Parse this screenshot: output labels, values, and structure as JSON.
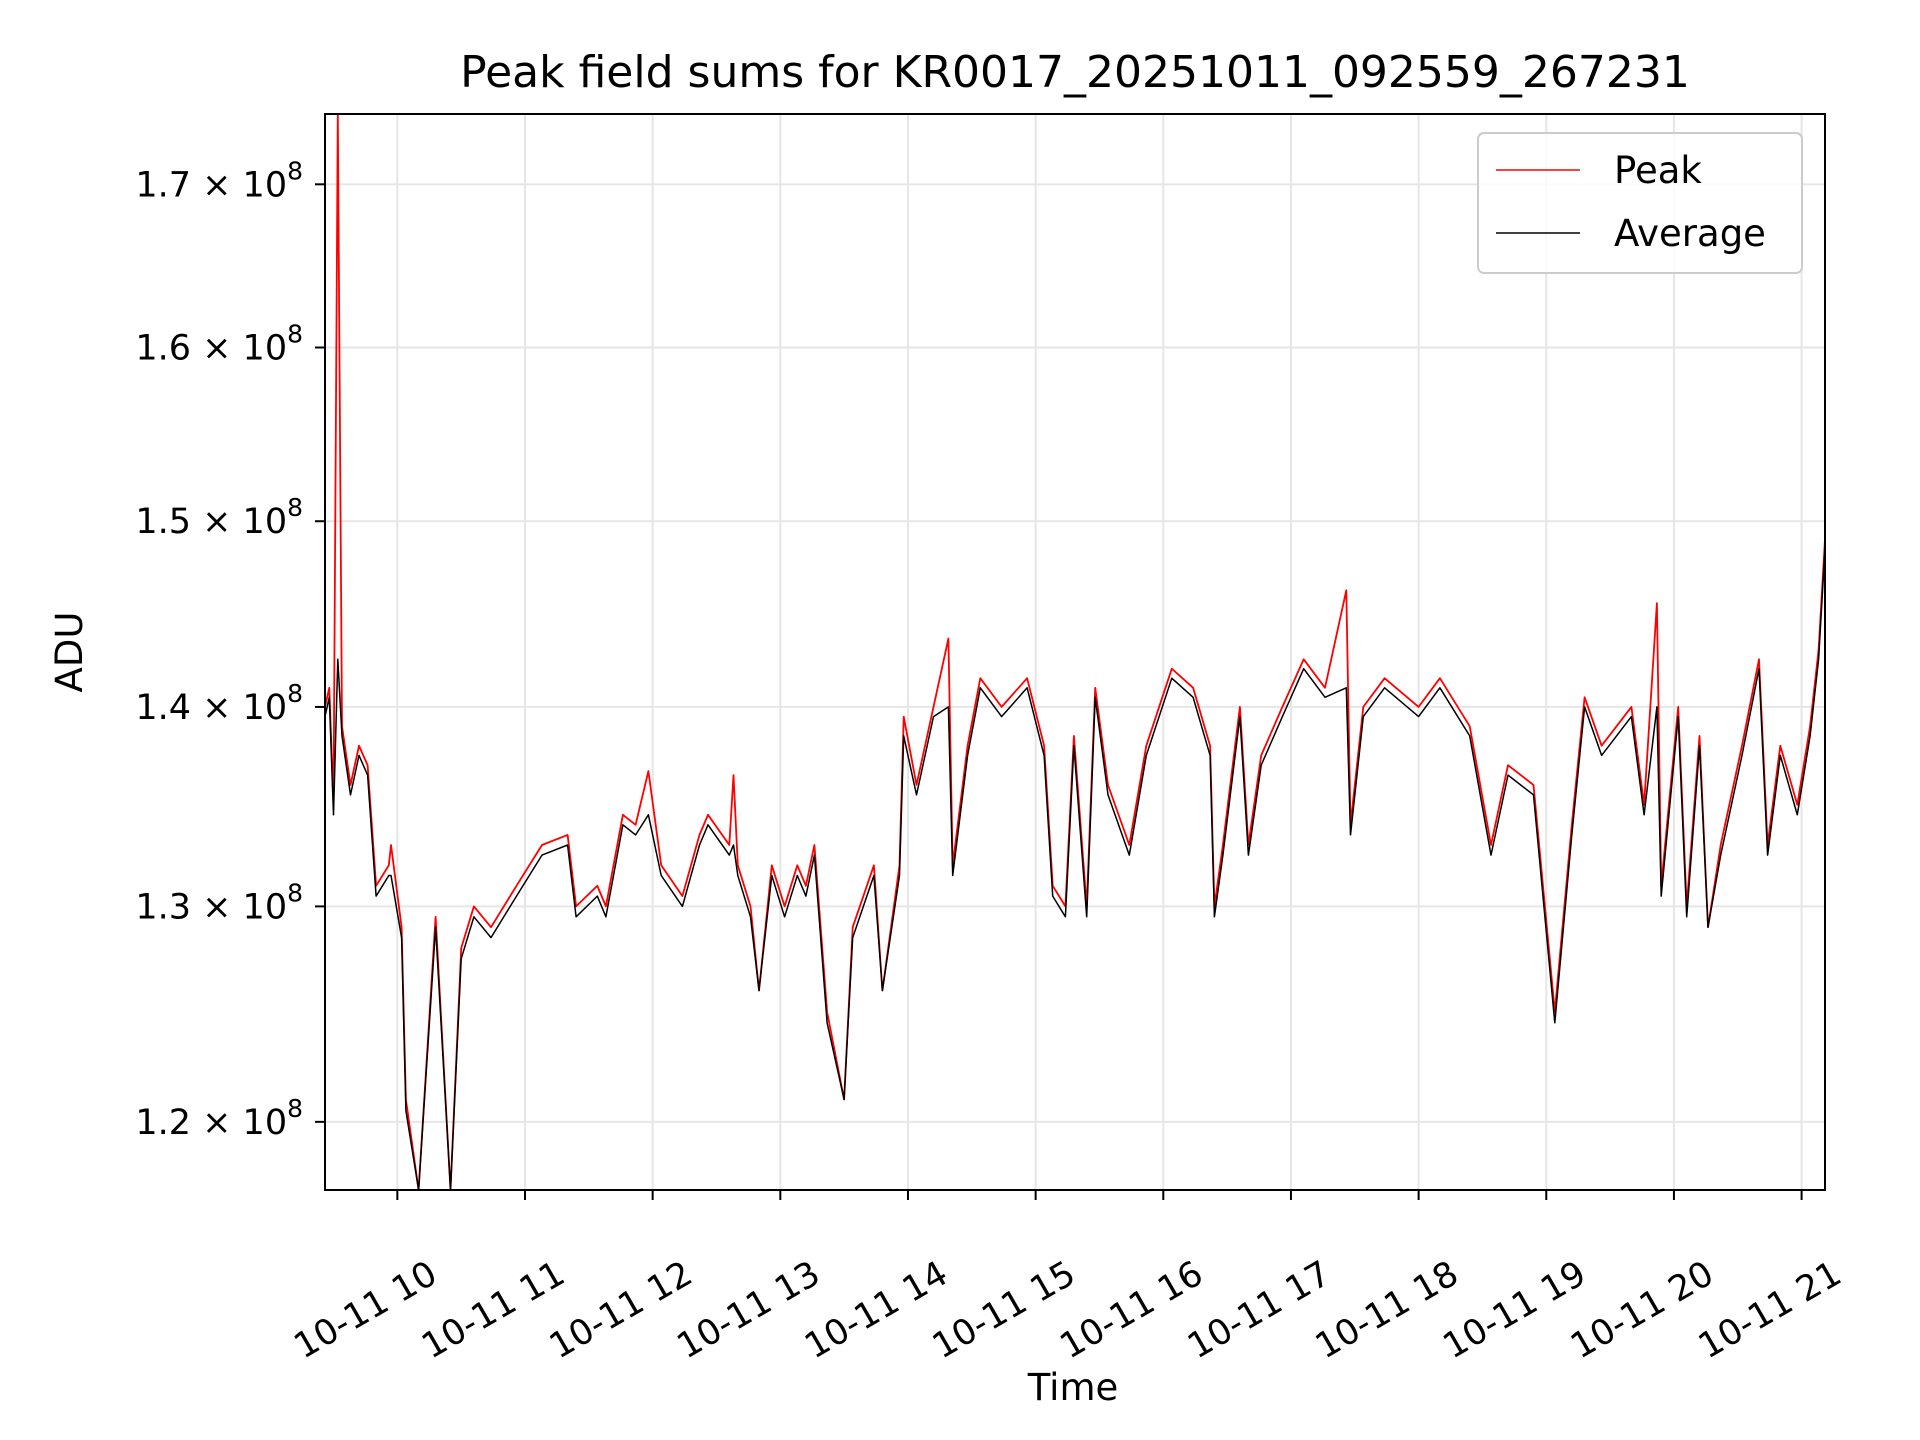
{
  "chart_data": {
    "type": "line",
    "title": "Peak field sums for KR0017_20251011_092559_267231",
    "xlabel": "Time",
    "ylabel": "ADU",
    "yscale": "log",
    "xlim": [
      "2025-10-11 09:26",
      "2025-10-11 21:11"
    ],
    "ylim": [
      117000000.0,
      174500000.0
    ],
    "grid": true,
    "legend_position": "upper right",
    "x_tick_labels": [
      "10-11 10",
      "10-11 11",
      "10-11 12",
      "10-11 13",
      "10-11 14",
      "10-11 15",
      "10-11 16",
      "10-11 17",
      "10-11 18",
      "10-11 19",
      "10-11 20",
      "10-11 21"
    ],
    "x_tick_values": [
      "2025-10-11 10:00",
      "2025-10-11 11:00",
      "2025-10-11 12:00",
      "2025-10-11 13:00",
      "2025-10-11 14:00",
      "2025-10-11 15:00",
      "2025-10-11 16:00",
      "2025-10-11 17:00",
      "2025-10-11 18:00",
      "2025-10-11 19:00",
      "2025-10-11 20:00",
      "2025-10-11 21:00"
    ],
    "y_ticks": [
      {
        "value": 120000000.0,
        "mantissa": "1.2",
        "exp": "8"
      },
      {
        "value": 130000000.0,
        "mantissa": "1.3",
        "exp": "8"
      },
      {
        "value": 140000000.0,
        "mantissa": "1.4",
        "exp": "8"
      },
      {
        "value": 150000000.0,
        "mantissa": "1.5",
        "exp": "8"
      },
      {
        "value": 160000000.0,
        "mantissa": "1.6",
        "exp": "8"
      },
      {
        "value": 170000000.0,
        "mantissa": "1.7",
        "exp": "8"
      }
    ],
    "series": [
      {
        "name": "Peak",
        "color": "#ff0000",
        "points": [
          [
            "2025-10-11 09:26",
            140000000.0
          ],
          [
            "2025-10-11 09:28",
            141000000.0
          ],
          [
            "2025-10-11 09:30",
            135000000.0
          ],
          [
            "2025-10-11 09:32",
            174500000.0
          ],
          [
            "2025-10-11 09:34",
            139000000.0
          ],
          [
            "2025-10-11 09:38",
            136000000.0
          ],
          [
            "2025-10-11 09:42",
            138000000.0
          ],
          [
            "2025-10-11 09:46",
            137000000.0
          ],
          [
            "2025-10-11 09:50",
            131000000.0
          ],
          [
            "2025-10-11 09:56",
            132000000.0
          ],
          [
            "2025-10-11 09:57",
            133000000.0
          ],
          [
            "2025-10-11 10:02",
            129000000.0
          ],
          [
            "2025-10-11 10:04",
            121000000.0
          ],
          [
            "2025-10-11 10:10",
            117000000.0
          ],
          [
            "2025-10-11 10:18",
            129500000.0
          ],
          [
            "2025-10-11 10:25",
            117000000.0
          ],
          [
            "2025-10-11 10:30",
            128000000.0
          ],
          [
            "2025-10-11 10:36",
            130000000.0
          ],
          [
            "2025-10-11 10:44",
            129000000.0
          ],
          [
            "2025-10-11 10:56",
            131000000.0
          ],
          [
            "2025-10-11 11:08",
            133000000.0
          ],
          [
            "2025-10-11 11:20",
            133500000.0
          ],
          [
            "2025-10-11 11:24",
            130000000.0
          ],
          [
            "2025-10-11 11:34",
            131000000.0
          ],
          [
            "2025-10-11 11:38",
            130000000.0
          ],
          [
            "2025-10-11 11:46",
            134500000.0
          ],
          [
            "2025-10-11 11:52",
            134000000.0
          ],
          [
            "2025-10-11 11:58",
            136700000.0
          ],
          [
            "2025-10-11 12:04",
            132000000.0
          ],
          [
            "2025-10-11 12:14",
            130500000.0
          ],
          [
            "2025-10-11 12:22",
            133500000.0
          ],
          [
            "2025-10-11 12:26",
            134500000.0
          ],
          [
            "2025-10-11 12:36",
            133000000.0
          ],
          [
            "2025-10-11 12:38",
            136500000.0
          ],
          [
            "2025-10-11 12:40",
            132000000.0
          ],
          [
            "2025-10-11 12:46",
            130000000.0
          ],
          [
            "2025-10-11 12:50",
            126000000.0
          ],
          [
            "2025-10-11 12:56",
            132000000.0
          ],
          [
            "2025-10-11 13:02",
            130000000.0
          ],
          [
            "2025-10-11 13:08",
            132000000.0
          ],
          [
            "2025-10-11 13:12",
            131000000.0
          ],
          [
            "2025-10-11 13:16",
            133000000.0
          ],
          [
            "2025-10-11 13:22",
            125000000.0
          ],
          [
            "2025-10-11 13:30",
            121000000.0
          ],
          [
            "2025-10-11 13:34",
            129000000.0
          ],
          [
            "2025-10-11 13:44",
            132000000.0
          ],
          [
            "2025-10-11 13:48",
            126000000.0
          ],
          [
            "2025-10-11 13:56",
            132000000.0
          ],
          [
            "2025-10-11 13:58",
            139500000.0
          ],
          [
            "2025-10-11 14:04",
            136000000.0
          ],
          [
            "2025-10-11 14:12",
            140000000.0
          ],
          [
            "2025-10-11 14:19",
            143600000.0
          ],
          [
            "2025-10-11 14:21",
            132000000.0
          ],
          [
            "2025-10-11 14:28",
            138000000.0
          ],
          [
            "2025-10-11 14:34",
            141500000.0
          ],
          [
            "2025-10-11 14:44",
            140000000.0
          ],
          [
            "2025-10-11 14:56",
            141500000.0
          ],
          [
            "2025-10-11 15:04",
            138000000.0
          ],
          [
            "2025-10-11 15:08",
            131000000.0
          ],
          [
            "2025-10-11 15:14",
            130000000.0
          ],
          [
            "2025-10-11 15:18",
            138500000.0
          ],
          [
            "2025-10-11 15:24",
            130000000.0
          ],
          [
            "2025-10-11 15:28",
            141000000.0
          ],
          [
            "2025-10-11 15:34",
            136000000.0
          ],
          [
            "2025-10-11 15:44",
            133000000.0
          ],
          [
            "2025-10-11 15:52",
            138000000.0
          ],
          [
            "2025-10-11 16:04",
            142000000.0
          ],
          [
            "2025-10-11 16:14",
            141000000.0
          ],
          [
            "2025-10-11 16:22",
            138000000.0
          ],
          [
            "2025-10-11 16:24",
            130000000.0
          ],
          [
            "2025-10-11 16:28",
            133000000.0
          ],
          [
            "2025-10-11 16:36",
            140000000.0
          ],
          [
            "2025-10-11 16:40",
            133000000.0
          ],
          [
            "2025-10-11 16:46",
            137500000.0
          ],
          [
            "2025-10-11 16:56",
            140000000.0
          ],
          [
            "2025-10-11 17:06",
            142500000.0
          ],
          [
            "2025-10-11 17:16",
            141000000.0
          ],
          [
            "2025-10-11 17:26",
            146200000.0
          ],
          [
            "2025-10-11 17:28",
            134000000.0
          ],
          [
            "2025-10-11 17:34",
            140000000.0
          ],
          [
            "2025-10-11 17:44",
            141500000.0
          ],
          [
            "2025-10-11 18:00",
            140000000.0
          ],
          [
            "2025-10-11 18:10",
            141500000.0
          ],
          [
            "2025-10-11 18:24",
            139000000.0
          ],
          [
            "2025-10-11 18:34",
            133000000.0
          ],
          [
            "2025-10-11 18:42",
            137000000.0
          ],
          [
            "2025-10-11 18:54",
            136000000.0
          ],
          [
            "2025-10-11 19:04",
            125000000.0
          ],
          [
            "2025-10-11 19:12",
            134000000.0
          ],
          [
            "2025-10-11 19:18",
            140500000.0
          ],
          [
            "2025-10-11 19:26",
            138000000.0
          ],
          [
            "2025-10-11 19:40",
            140000000.0
          ],
          [
            "2025-10-11 19:46",
            135000000.0
          ],
          [
            "2025-10-11 19:52",
            145500000.0
          ],
          [
            "2025-10-11 19:54",
            131000000.0
          ],
          [
            "2025-10-11 20:02",
            140000000.0
          ],
          [
            "2025-10-11 20:06",
            130000000.0
          ],
          [
            "2025-10-11 20:12",
            138500000.0
          ],
          [
            "2025-10-11 20:16",
            129000000.0
          ],
          [
            "2025-10-11 20:22",
            133000000.0
          ],
          [
            "2025-10-11 20:32",
            138000000.0
          ],
          [
            "2025-10-11 20:40",
            142500000.0
          ],
          [
            "2025-10-11 20:44",
            133000000.0
          ],
          [
            "2025-10-11 20:50",
            138000000.0
          ],
          [
            "2025-10-11 20:58",
            135000000.0
          ],
          [
            "2025-10-11 21:04",
            139000000.0
          ],
          [
            "2025-10-11 21:08",
            143000000.0
          ],
          [
            "2025-10-11 21:11",
            149000000.0
          ]
        ]
      },
      {
        "name": "Average",
        "color": "#000000",
        "points": [
          [
            "2025-10-11 09:26",
            139500000.0
          ],
          [
            "2025-10-11 09:28",
            140500000.0
          ],
          [
            "2025-10-11 09:30",
            134500000.0
          ],
          [
            "2025-10-11 09:32",
            142500000.0
          ],
          [
            "2025-10-11 09:34",
            138500000.0
          ],
          [
            "2025-10-11 09:38",
            135500000.0
          ],
          [
            "2025-10-11 09:42",
            137500000.0
          ],
          [
            "2025-10-11 09:46",
            136500000.0
          ],
          [
            "2025-10-11 09:50",
            130500000.0
          ],
          [
            "2025-10-11 09:56",
            131500000.0
          ],
          [
            "2025-10-11 09:57",
            131500000.0
          ],
          [
            "2025-10-11 10:02",
            128500000.0
          ],
          [
            "2025-10-11 10:04",
            120500000.0
          ],
          [
            "2025-10-11 10:10",
            117000000.0
          ],
          [
            "2025-10-11 10:18",
            129000000.0
          ],
          [
            "2025-10-11 10:25",
            117000000.0
          ],
          [
            "2025-10-11 10:30",
            127500000.0
          ],
          [
            "2025-10-11 10:36",
            129500000.0
          ],
          [
            "2025-10-11 10:44",
            128500000.0
          ],
          [
            "2025-10-11 10:56",
            130500000.0
          ],
          [
            "2025-10-11 11:08",
            132500000.0
          ],
          [
            "2025-10-11 11:20",
            133000000.0
          ],
          [
            "2025-10-11 11:24",
            129500000.0
          ],
          [
            "2025-10-11 11:34",
            130500000.0
          ],
          [
            "2025-10-11 11:38",
            129500000.0
          ],
          [
            "2025-10-11 11:46",
            134000000.0
          ],
          [
            "2025-10-11 11:52",
            133500000.0
          ],
          [
            "2025-10-11 11:58",
            134500000.0
          ],
          [
            "2025-10-11 12:04",
            131500000.0
          ],
          [
            "2025-10-11 12:14",
            130000000.0
          ],
          [
            "2025-10-11 12:22",
            133000000.0
          ],
          [
            "2025-10-11 12:26",
            134000000.0
          ],
          [
            "2025-10-11 12:36",
            132500000.0
          ],
          [
            "2025-10-11 12:38",
            133000000.0
          ],
          [
            "2025-10-11 12:40",
            131500000.0
          ],
          [
            "2025-10-11 12:46",
            129500000.0
          ],
          [
            "2025-10-11 12:50",
            126000000.0
          ],
          [
            "2025-10-11 12:56",
            131500000.0
          ],
          [
            "2025-10-11 13:02",
            129500000.0
          ],
          [
            "2025-10-11 13:08",
            131500000.0
          ],
          [
            "2025-10-11 13:12",
            130500000.0
          ],
          [
            "2025-10-11 13:16",
            132500000.0
          ],
          [
            "2025-10-11 13:22",
            124500000.0
          ],
          [
            "2025-10-11 13:30",
            121000000.0
          ],
          [
            "2025-10-11 13:34",
            128500000.0
          ],
          [
            "2025-10-11 13:44",
            131500000.0
          ],
          [
            "2025-10-11 13:48",
            126000000.0
          ],
          [
            "2025-10-11 13:56",
            131500000.0
          ],
          [
            "2025-10-11 13:58",
            138500000.0
          ],
          [
            "2025-10-11 14:04",
            135500000.0
          ],
          [
            "2025-10-11 14:12",
            139500000.0
          ],
          [
            "2025-10-11 14:19",
            140000000.0
          ],
          [
            "2025-10-11 14:21",
            131500000.0
          ],
          [
            "2025-10-11 14:28",
            137500000.0
          ],
          [
            "2025-10-11 14:34",
            141000000.0
          ],
          [
            "2025-10-11 14:44",
            139500000.0
          ],
          [
            "2025-10-11 14:56",
            141000000.0
          ],
          [
            "2025-10-11 15:04",
            137500000.0
          ],
          [
            "2025-10-11 15:08",
            130500000.0
          ],
          [
            "2025-10-11 15:14",
            129500000.0
          ],
          [
            "2025-10-11 15:18",
            138000000.0
          ],
          [
            "2025-10-11 15:24",
            129500000.0
          ],
          [
            "2025-10-11 15:28",
            140500000.0
          ],
          [
            "2025-10-11 15:34",
            135500000.0
          ],
          [
            "2025-10-11 15:44",
            132500000.0
          ],
          [
            "2025-10-11 15:52",
            137500000.0
          ],
          [
            "2025-10-11 16:04",
            141500000.0
          ],
          [
            "2025-10-11 16:14",
            140500000.0
          ],
          [
            "2025-10-11 16:22",
            137500000.0
          ],
          [
            "2025-10-11 16:24",
            129500000.0
          ],
          [
            "2025-10-11 16:28",
            132500000.0
          ],
          [
            "2025-10-11 16:36",
            139500000.0
          ],
          [
            "2025-10-11 16:40",
            132500000.0
          ],
          [
            "2025-10-11 16:46",
            137000000.0
          ],
          [
            "2025-10-11 16:56",
            139500000.0
          ],
          [
            "2025-10-11 17:06",
            142000000.0
          ],
          [
            "2025-10-11 17:16",
            140500000.0
          ],
          [
            "2025-10-11 17:26",
            141000000.0
          ],
          [
            "2025-10-11 17:28",
            133500000.0
          ],
          [
            "2025-10-11 17:34",
            139500000.0
          ],
          [
            "2025-10-11 17:44",
            141000000.0
          ],
          [
            "2025-10-11 18:00",
            139500000.0
          ],
          [
            "2025-10-11 18:10",
            141000000.0
          ],
          [
            "2025-10-11 18:24",
            138500000.0
          ],
          [
            "2025-10-11 18:34",
            132500000.0
          ],
          [
            "2025-10-11 18:42",
            136500000.0
          ],
          [
            "2025-10-11 18:54",
            135500000.0
          ],
          [
            "2025-10-11 19:04",
            124500000.0
          ],
          [
            "2025-10-11 19:12",
            133500000.0
          ],
          [
            "2025-10-11 19:18",
            140000000.0
          ],
          [
            "2025-10-11 19:26",
            137500000.0
          ],
          [
            "2025-10-11 19:40",
            139500000.0
          ],
          [
            "2025-10-11 19:46",
            134500000.0
          ],
          [
            "2025-10-11 19:52",
            140000000.0
          ],
          [
            "2025-10-11 19:54",
            130500000.0
          ],
          [
            "2025-10-11 20:02",
            139500000.0
          ],
          [
            "2025-10-11 20:06",
            129500000.0
          ],
          [
            "2025-10-11 20:12",
            138000000.0
          ],
          [
            "2025-10-11 20:16",
            129000000.0
          ],
          [
            "2025-10-11 20:22",
            132500000.0
          ],
          [
            "2025-10-11 20:32",
            137500000.0
          ],
          [
            "2025-10-11 20:40",
            142000000.0
          ],
          [
            "2025-10-11 20:44",
            132500000.0
          ],
          [
            "2025-10-11 20:50",
            137500000.0
          ],
          [
            "2025-10-11 20:58",
            134500000.0
          ],
          [
            "2025-10-11 21:04",
            138500000.0
          ],
          [
            "2025-10-11 21:08",
            142500000.0
          ],
          [
            "2025-10-11 21:11",
            148500000.0
          ]
        ]
      }
    ]
  }
}
